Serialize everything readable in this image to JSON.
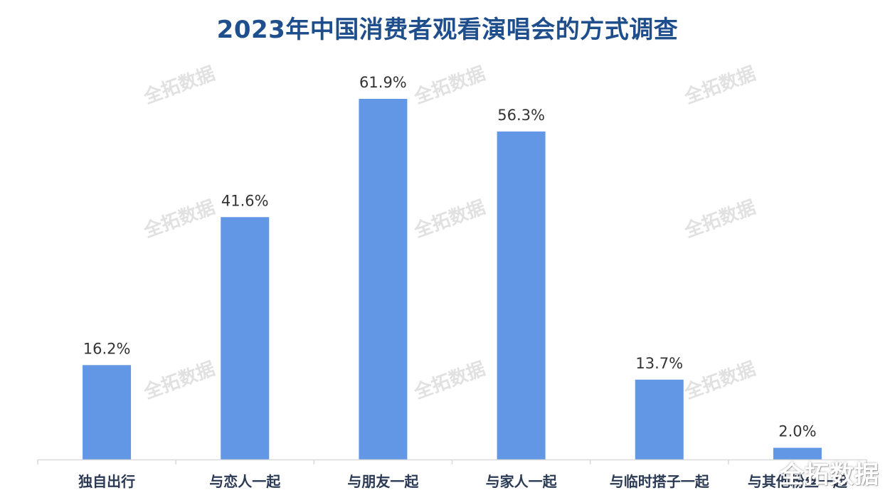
{
  "chart_data": {
    "type": "bar",
    "title": "2023年中国消费者观看演唱会的方式调查",
    "categories": [
      "独自出行",
      "与恋人一起",
      "与朋友一起",
      "与家人一起",
      "与临时搭子一起",
      "与其他粉丝一起"
    ],
    "values": [
      16.2,
      41.6,
      61.9,
      56.3,
      13.7,
      2.0
    ],
    "value_labels": [
      "16.2%",
      "41.6%",
      "61.9%",
      "56.3%",
      "13.7%",
      "2.0%"
    ],
    "ylim": [
      0,
      70
    ],
    "grid": false,
    "legend": "none",
    "colors": {
      "bar": "#6197e4",
      "title": "#1f4e8c",
      "axis": "#d9d9d9"
    }
  },
  "watermark": "全拓数据",
  "brand": "全拓数据"
}
